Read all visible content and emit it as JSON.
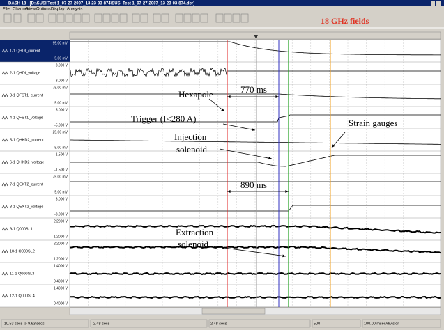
{
  "window": {
    "title": "DASH 18 - [D:\\SUSI Test 1_07-27-2007_13-23-03-874\\SUSI Test 1_07-27-2007_13-23-03-874.dcr]",
    "menu": [
      "File",
      "Channel",
      "View",
      "Options",
      "Display",
      "Analysis"
    ]
  },
  "toolbar": {
    "annotation": "18 GHz fields"
  },
  "channels": [
    {
      "label": "1-1 QHDI_current",
      "top": "95.00 mV",
      "bottom": "5.00 mV"
    },
    {
      "label": "2-1 QHDI_voltage",
      "top": "3.000 V",
      "bottom": "-3.000 V"
    },
    {
      "label": "3-1 QFST1_current",
      "top": "75.00 mV",
      "bottom": "5.00 mV"
    },
    {
      "label": "4-1 QFST1_voltage",
      "top": "5.000 V",
      "bottom": "-5.000 V"
    },
    {
      "label": "5-1 QHKD2_current",
      "top": "25.00 mV",
      "bottom": "-5.00 mV"
    },
    {
      "label": "6-1 QHKD2_voltage",
      "top": "1.500 V",
      "bottom": "-1.500 V"
    },
    {
      "label": "7-1 QEXT2_current",
      "top": "75.00 mV",
      "bottom": "5.00 mV"
    },
    {
      "label": "8-1 QEXT2_voltage",
      "top": "3.000 V",
      "bottom": "-3.000 V"
    },
    {
      "label": "9-1 Q000SL1",
      "top": "2.2000 V",
      "bottom": "1.2000 V"
    },
    {
      "label": "10-1 Q000SL2",
      "top": "2.2000 V",
      "bottom": "1.2000 V"
    },
    {
      "label": "11-1 Q000SL3",
      "top": "1.4000 V",
      "bottom": "0.4000 V"
    },
    {
      "label": "12-1 Q000SL4",
      "top": "1.4000 V",
      "bottom": "0.4000 V"
    }
  ],
  "annotations": [
    "Hexapole",
    "770 ms",
    "Trigger (I<280 A)",
    "Injection",
    "solenoid",
    "Strain gauges",
    "890 ms",
    "Extraction",
    "solenoid"
  ],
  "status": [
    "-10.53 secs to 9.63 secs",
    "-2.48 secs",
    "2.48 secs",
    "500",
    "100.00 msec/division"
  ]
}
